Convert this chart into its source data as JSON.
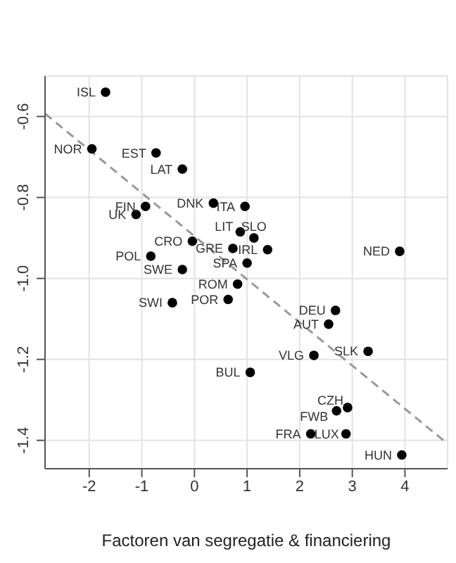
{
  "chart_data": {
    "type": "scatter",
    "xlabel": "Factoren van segregatie & financiering",
    "xlim": [
      -2.84,
      4.81
    ],
    "ylim": [
      -1.47,
      -0.5
    ],
    "xticks": [
      -2,
      -1,
      0,
      1,
      2,
      3,
      4
    ],
    "yticks": [
      -0.6,
      -0.8,
      {
        "value": -1,
        "label": "-1.0"
      },
      -1.2,
      -1.4
    ],
    "grid": true,
    "marker": "circle",
    "series": [
      {
        "color": "#000000",
        "x": [
          -1.69,
          -1.95,
          -0.73,
          -0.23,
          -0.93,
          -1.11,
          0.36,
          0.96,
          -0.04,
          -0.83,
          -0.23,
          -0.42,
          0.87,
          1.13,
          0.73,
          1.39,
          1.0,
          3.9,
          0.82,
          0.64,
          2.68,
          2.55,
          3.3,
          2.27,
          1.06,
          2.91,
          2.7,
          2.21,
          2.88,
          3.94
        ],
        "values": [
          -0.54,
          -0.68,
          -0.69,
          -0.73,
          -0.822,
          -0.842,
          -0.814,
          -0.822,
          -0.908,
          -0.945,
          -0.978,
          -1.06,
          -0.885,
          -0.9,
          -0.926,
          -0.929,
          -0.962,
          -0.933,
          -1.014,
          -1.052,
          -1.079,
          -1.113,
          -1.18,
          -1.19,
          -1.232,
          -1.319,
          -1.327,
          -1.384,
          -1.384,
          -1.436
        ]
      },
      {
        "type": "line",
        "color": "#999999",
        "line_style": "dashed",
        "marker": "none",
        "x": [
          -2.84,
          4.76
        ],
        "values": [
          -0.593,
          -1.403
        ]
      }
    ],
    "annotations": [
      {
        "text": "ISL",
        "x": -1.69,
        "y": -0.54
      },
      {
        "text": "NOR",
        "x": -1.95,
        "y": -0.68
      },
      {
        "text": "EST",
        "x": -0.73,
        "y": -0.69
      },
      {
        "text": "LAT",
        "x": -0.23,
        "y": -0.73
      },
      {
        "text": "FIN",
        "x": -0.93,
        "y": -0.822
      },
      {
        "text": "UK",
        "x": -1.11,
        "y": -0.842
      },
      {
        "text": "DNK",
        "x": 0.36,
        "y": -0.814
      },
      {
        "text": "ITA",
        "x": 0.96,
        "y": -0.822
      },
      {
        "text": "CRO",
        "x": -0.04,
        "y": -0.908
      },
      {
        "text": "POL",
        "x": -0.83,
        "y": -0.945
      },
      {
        "text": "SWE",
        "x": -0.23,
        "y": -0.978
      },
      {
        "text": "SWI",
        "x": -0.42,
        "y": -1.06
      },
      {
        "text": "LIT",
        "x": 0.87,
        "y": -0.885
      },
      {
        "text": "SLO",
        "x": 1.13,
        "y": -0.9
      },
      {
        "text": "GRE",
        "x": 0.73,
        "y": -0.926
      },
      {
        "text": "IRL",
        "x": 1.39,
        "y": -0.929
      },
      {
        "text": "SPA",
        "x": 1.0,
        "y": -0.962
      },
      {
        "text": "NED",
        "x": 3.9,
        "y": -0.933
      },
      {
        "text": "ROM",
        "x": 0.82,
        "y": -1.014
      },
      {
        "text": "POR",
        "x": 0.64,
        "y": -1.052
      },
      {
        "text": "DEU",
        "x": 2.68,
        "y": -1.079
      },
      {
        "text": "AUT",
        "x": 2.55,
        "y": -1.113
      },
      {
        "text": "SLK",
        "x": 3.3,
        "y": -1.18
      },
      {
        "text": "VLG",
        "x": 2.27,
        "y": -1.19
      },
      {
        "text": "BUL",
        "x": 1.06,
        "y": -1.232
      },
      {
        "text": "CZH",
        "x": 2.91,
        "y": -1.319
      },
      {
        "text": "FWB",
        "x": 2.7,
        "y": -1.327
      },
      {
        "text": "FRA",
        "x": 2.21,
        "y": -1.384
      },
      {
        "text": "LUX",
        "x": 2.88,
        "y": -1.384
      },
      {
        "text": "HUN",
        "x": 3.94,
        "y": -1.436
      }
    ]
  }
}
